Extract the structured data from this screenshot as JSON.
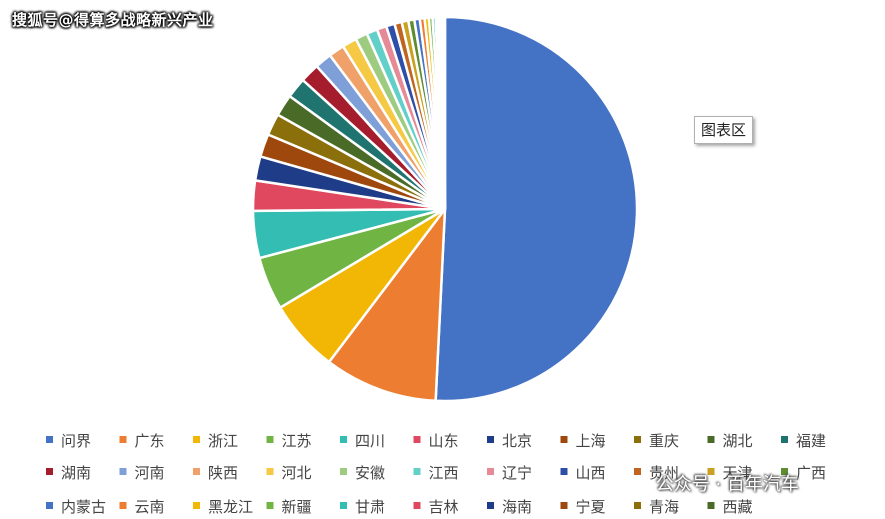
{
  "watermark_top": "搜狐号@得算多战略新兴产业",
  "tooltip_label": "图表区",
  "watermark_bottom": "公众号 · 百年汽车",
  "chart_data": {
    "type": "pie",
    "title": "",
    "legend_position": "bottom",
    "categories": [
      "问界",
      "广东",
      "浙江",
      "江苏",
      "四川",
      "山东",
      "北京",
      "上海",
      "重庆",
      "湖北",
      "福建",
      "湖南",
      "河南",
      "陕西",
      "河北",
      "安徽",
      "江西",
      "辽宁",
      "山西",
      "贵州",
      "天津",
      "广西",
      "内蒙古",
      "云南",
      "黑龙江",
      "新疆",
      "甘肃",
      "吉林",
      "海南",
      "宁夏",
      "青海",
      "西藏"
    ],
    "values": [
      50.0,
      9.4,
      6.0,
      4.4,
      3.9,
      2.5,
      2.0,
      1.9,
      1.8,
      1.8,
      1.7,
      1.6,
      1.4,
      1.3,
      1.2,
      1.0,
      0.9,
      0.8,
      0.7,
      0.6,
      0.55,
      0.5,
      0.45,
      0.4,
      0.35,
      0.3,
      0.25,
      0.2,
      0.2,
      0.15,
      0.12,
      0.1
    ],
    "colors": [
      "#4472C4",
      "#ED7D31",
      "#F2B705",
      "#70B443",
      "#33BDB3",
      "#E0485F",
      "#1F3C88",
      "#9E480E",
      "#8B6F0B",
      "#4A6B27",
      "#1F7470",
      "#A51D2D",
      "#7F9FD8",
      "#F0A069",
      "#F6C945",
      "#9DCB7F",
      "#62D0C8",
      "#E58A96",
      "#2E4FA8",
      "#C0651F",
      "#C9A020",
      "#5E8C31"
    ]
  }
}
